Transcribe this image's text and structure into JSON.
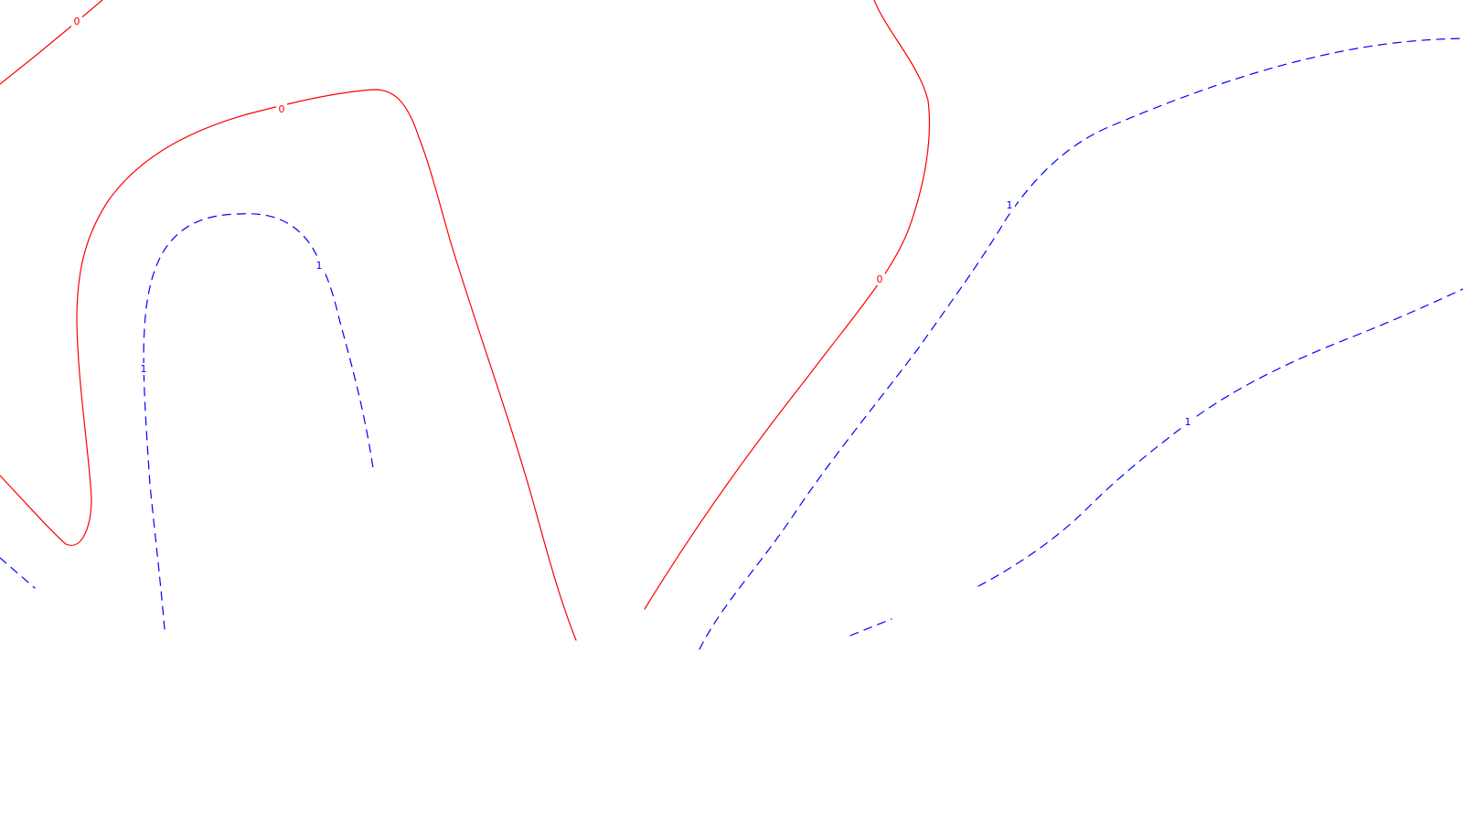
{
  "colors": {
    "background": "#ffffff",
    "level_0": "#ff0000",
    "level_1": "#0000ff"
  },
  "contour_levels": [
    {
      "level": "0",
      "line_style": "solid",
      "color": "#ff0000"
    },
    {
      "level": "1",
      "line_style": "dashed",
      "color": "#0000ff"
    }
  ],
  "labels": {
    "level_0": "0",
    "level_1": "1"
  }
}
